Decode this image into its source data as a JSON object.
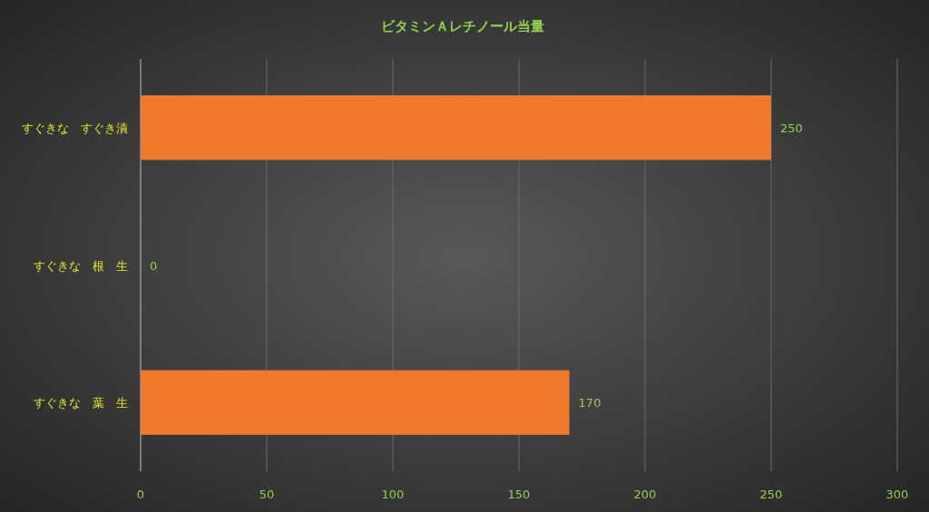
{
  "chart_data": {
    "type": "bar",
    "orientation": "horizontal",
    "title": "ビタミンＡレチノール当量",
    "categories": [
      "すぐきな　すぐき漬",
      "すぐきな　根　生",
      "すぐきな　葉　生"
    ],
    "values": [
      250,
      0,
      170
    ],
    "color": "#ee7a2a",
    "data_labels": true,
    "xlim": [
      0,
      300
    ],
    "xticks": [
      0,
      50,
      100,
      150,
      200,
      250,
      300
    ],
    "grid": "x"
  }
}
